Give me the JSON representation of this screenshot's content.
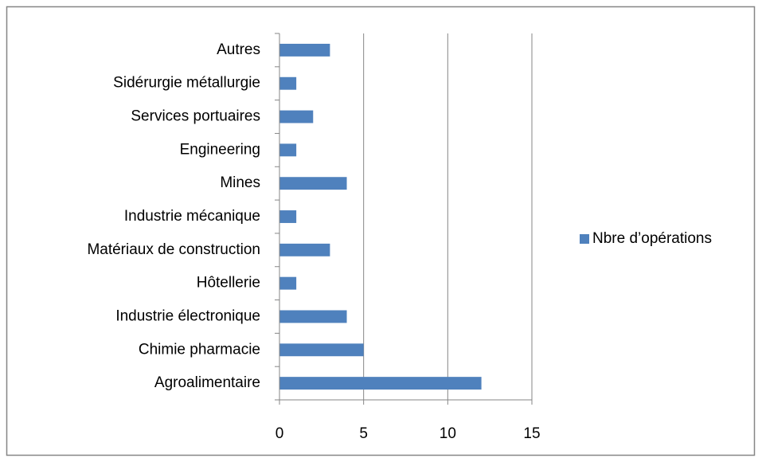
{
  "chart_data": {
    "type": "bar",
    "orientation": "horizontal",
    "categories": [
      "Agroalimentaire",
      "Chimie pharmacie",
      "Industrie électronique",
      "Hôtellerie",
      "Matériaux de construction",
      "Industrie mécanique",
      "Mines",
      "Engineering",
      "Services portuaires",
      "Sidérurgie métallurgie",
      "Autres"
    ],
    "series": [
      {
        "name": "Nbre d’opérations",
        "color": "#4f81bd",
        "values": [
          12,
          5,
          4,
          1,
          3,
          1,
          4,
          1,
          2,
          1,
          3
        ]
      }
    ],
    "xlim": [
      0,
      15
    ],
    "xticks": [
      0,
      5,
      10,
      15
    ],
    "grid": true,
    "legend": "right"
  }
}
